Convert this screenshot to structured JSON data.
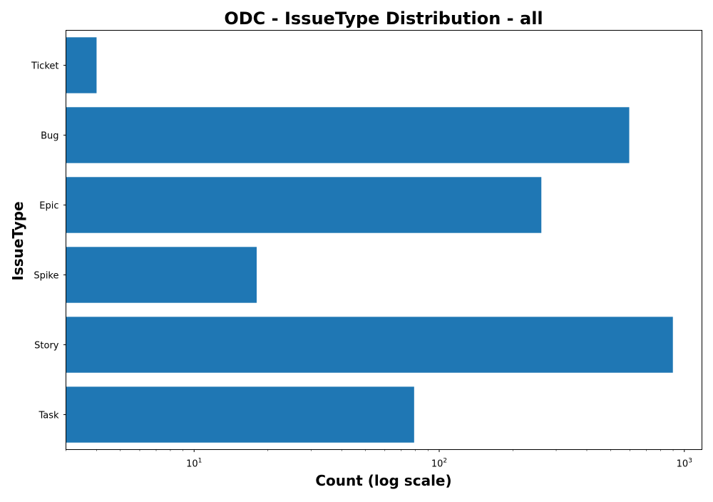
{
  "chart_data": {
    "type": "bar",
    "orientation": "horizontal",
    "title": "ODC - IssueType Distribution - all",
    "xlabel": "Count (log scale)",
    "ylabel": "IssueType",
    "xscale": "log",
    "xlim": [
      3,
      1180
    ],
    "categories": [
      "Task",
      "Story",
      "Spike",
      "Epic",
      "Bug",
      "Ticket"
    ],
    "values": [
      79,
      898,
      18,
      261,
      596,
      4
    ],
    "x_ticks": [
      {
        "value": 10,
        "base": "10",
        "exp": "1"
      },
      {
        "value": 100,
        "base": "10",
        "exp": "2"
      },
      {
        "value": 1000,
        "base": "10",
        "exp": "3"
      }
    ],
    "bar_color": "#1f77b4",
    "grid": false,
    "legend": "none"
  }
}
